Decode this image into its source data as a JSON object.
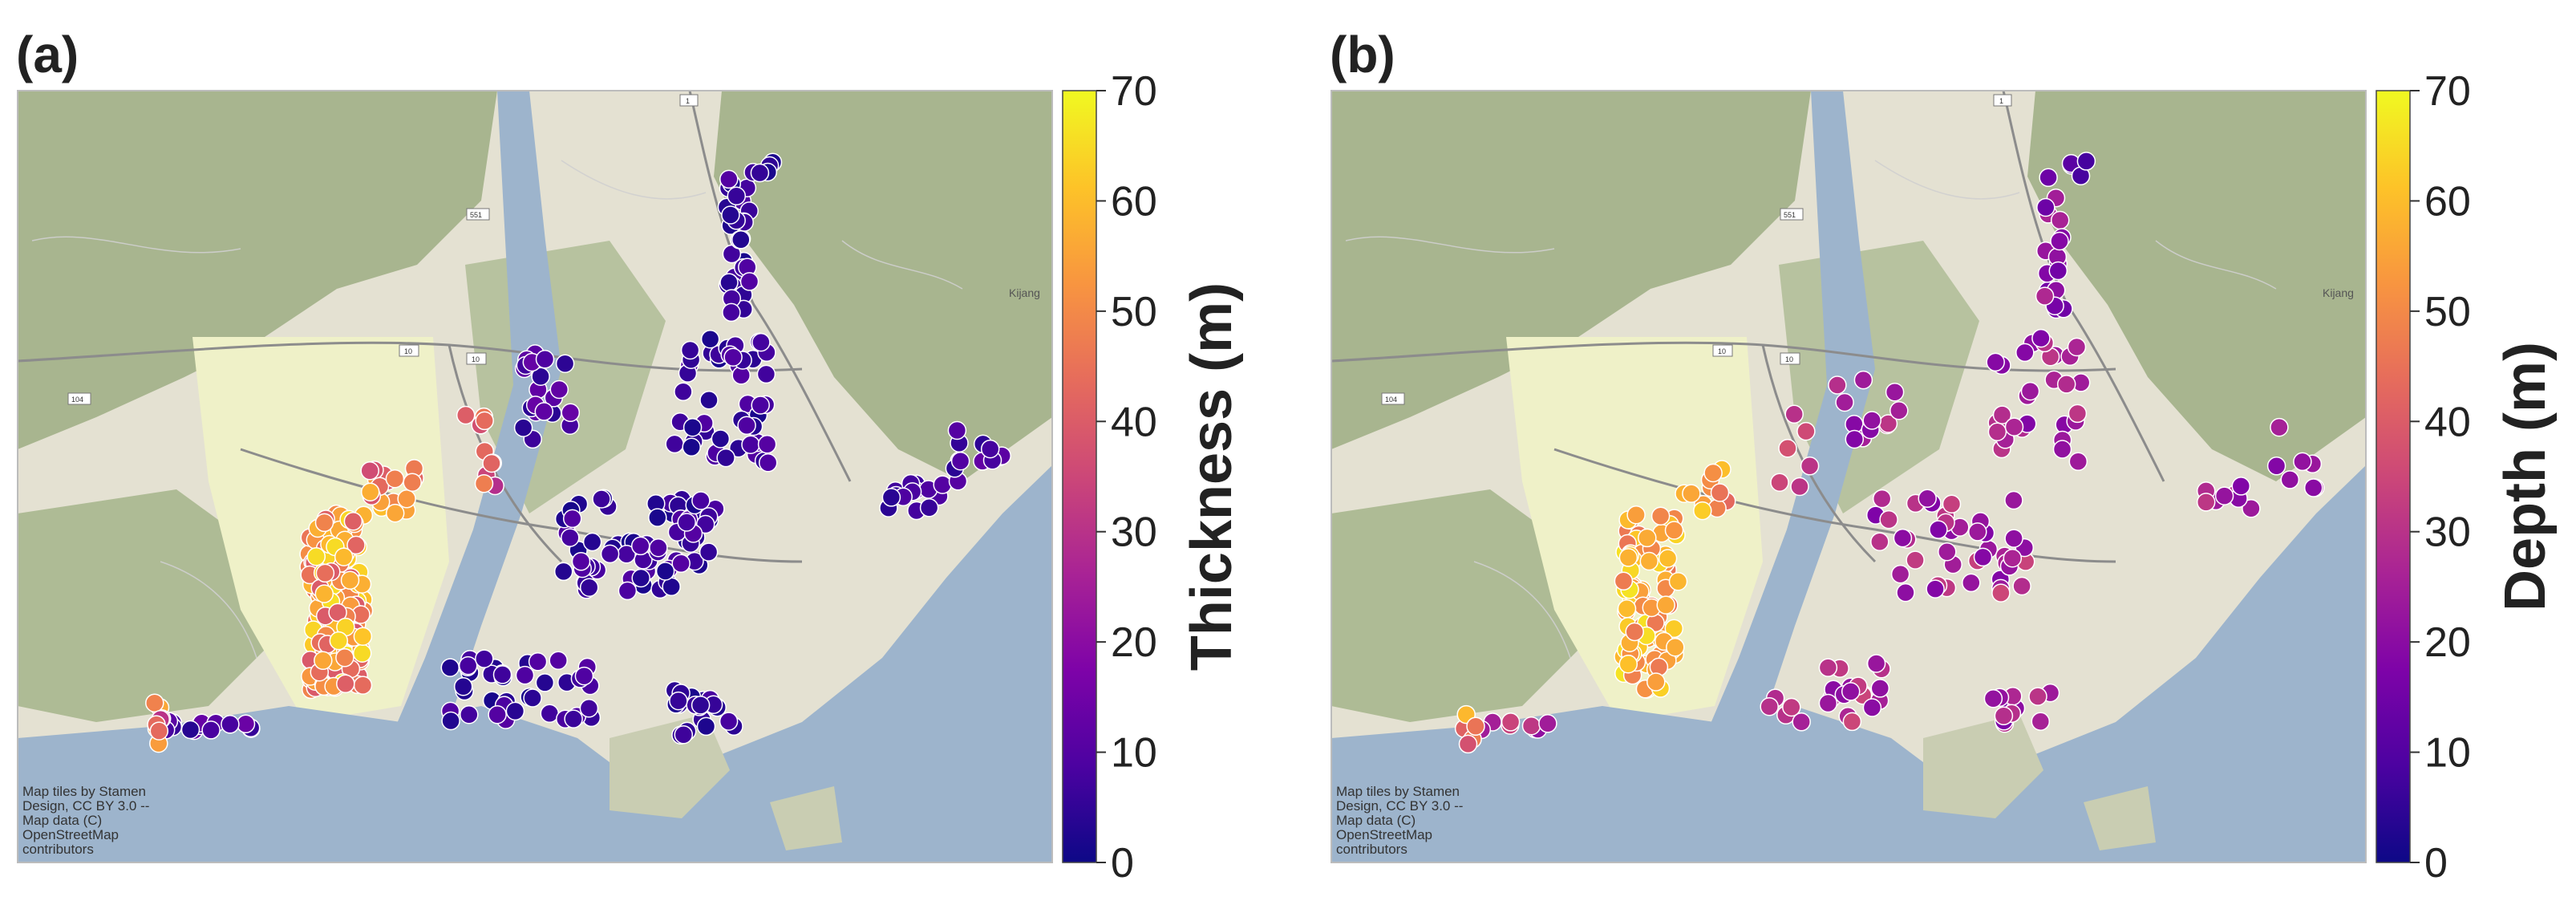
{
  "panels": [
    {
      "id": "a",
      "label": "(a)",
      "colorbar": {
        "title": "Thickness (m)",
        "min": 0,
        "max": 70,
        "ticks": [
          "0",
          "10",
          "20",
          "30",
          "40",
          "50",
          "60",
          "70"
        ]
      },
      "credit": [
        "Map tiles by Stamen",
        "Design, CC BY 3.0 --",
        "Map data (C)",
        "OpenStreetMap",
        "contributors"
      ],
      "place_label": "Kijang",
      "road_numbers": [
        "1",
        "551",
        "10",
        "10",
        "104"
      ]
    },
    {
      "id": "b",
      "label": "(b)",
      "colorbar": {
        "title": "Depth (m)",
        "min": 0,
        "max": 70,
        "ticks": [
          "0",
          "10",
          "20",
          "30",
          "40",
          "50",
          "60",
          "70"
        ]
      },
      "credit": [
        "Map tiles by Stamen",
        "Design, CC BY 3.0 --",
        "Map data (C)",
        "OpenStreetMap",
        "contributors"
      ],
      "place_label": "Kijang",
      "road_numbers": [
        "1",
        "551",
        "10",
        "10",
        "104"
      ]
    }
  ],
  "colormap": "plasma",
  "colors": {
    "water": "#9db4cc",
    "land": "#e6e3d4",
    "flat": "#eef0c6",
    "hill": "#a9b690",
    "colorbar_low": "#0d0887",
    "colorbar_high": "#f0f921"
  }
}
